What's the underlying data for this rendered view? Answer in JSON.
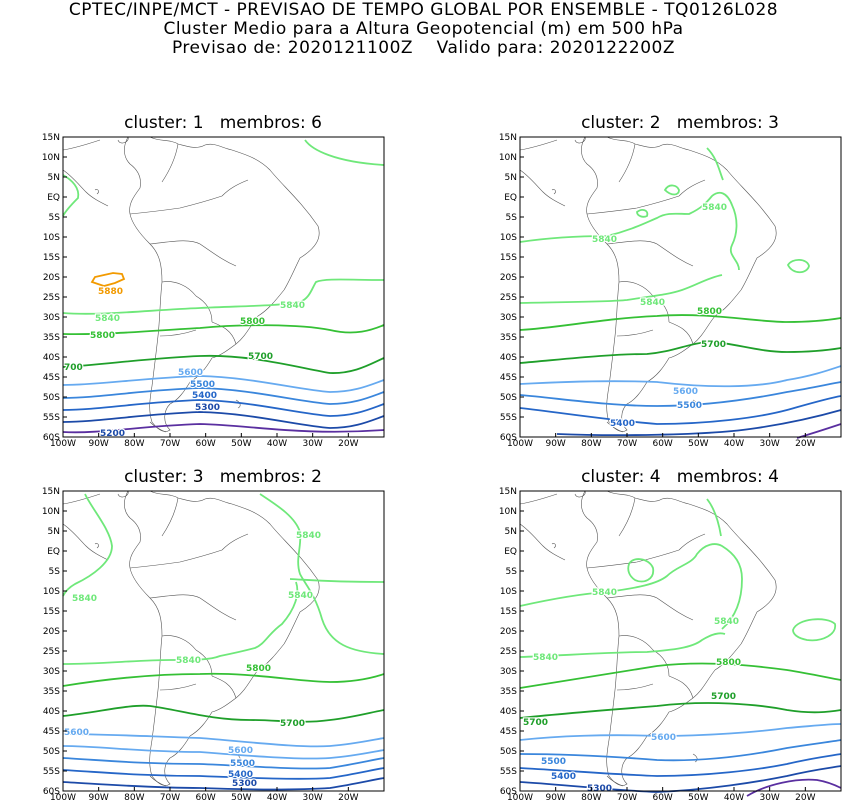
{
  "header": {
    "line1": "CPTEC/INPE/MCT - PREVISAO DE TEMPO GLOBAL POR ENSEMBLE - TQ0126L028",
    "line2": "Cluster Medio para a Altura Geopotencial (m) em 500 hPa",
    "line3": "Previsao de: 2020121100Z    Valido para: 2020122200Z"
  },
  "axes": {
    "lat_labels": [
      "15N",
      "10N",
      "5N",
      "EQ",
      "5S",
      "10S",
      "15S",
      "20S",
      "25S",
      "30S",
      "35S",
      "40S",
      "45S",
      "50S",
      "55S",
      "60S"
    ],
    "lon_labels": [
      "100W",
      "90W",
      "80W",
      "70W",
      "60W",
      "50W",
      "40W",
      "30W",
      "20W"
    ]
  },
  "panels": [
    {
      "title": "cluster: 1   membros: 6",
      "labels": [
        "5880",
        "5840",
        "5840",
        "5800",
        "5800",
        "5700",
        "700",
        "5600",
        "5500",
        "5400",
        "5300",
        "5200"
      ]
    },
    {
      "title": "cluster: 2   membros: 3",
      "labels": [
        "5840",
        "5840",
        "5840",
        "5800",
        "5700",
        "5600",
        "5500",
        "5400"
      ]
    },
    {
      "title": "cluster: 3   membros: 2",
      "labels": [
        "5840",
        "5840",
        "5840",
        "5840",
        "5800",
        "5700",
        "5600",
        "5600",
        "5500",
        "5400",
        "5300"
      ]
    },
    {
      "title": "cluster: 4   membros: 4",
      "labels": [
        "5840",
        "5840",
        "5840",
        "5800",
        "5700",
        "5700",
        "5600",
        "5500",
        "5400",
        "5300"
      ]
    }
  ],
  "colors": {
    "c5880": "#f29a00",
    "c5840": "#6fe87a",
    "c5800": "#35c035",
    "c5700": "#1f9f2a",
    "c5600": "#66aaf0",
    "c5500": "#3a86dc",
    "c5400": "#2566c8",
    "c5300": "#1c4aa8",
    "c5200": "#5a2fa0"
  }
}
